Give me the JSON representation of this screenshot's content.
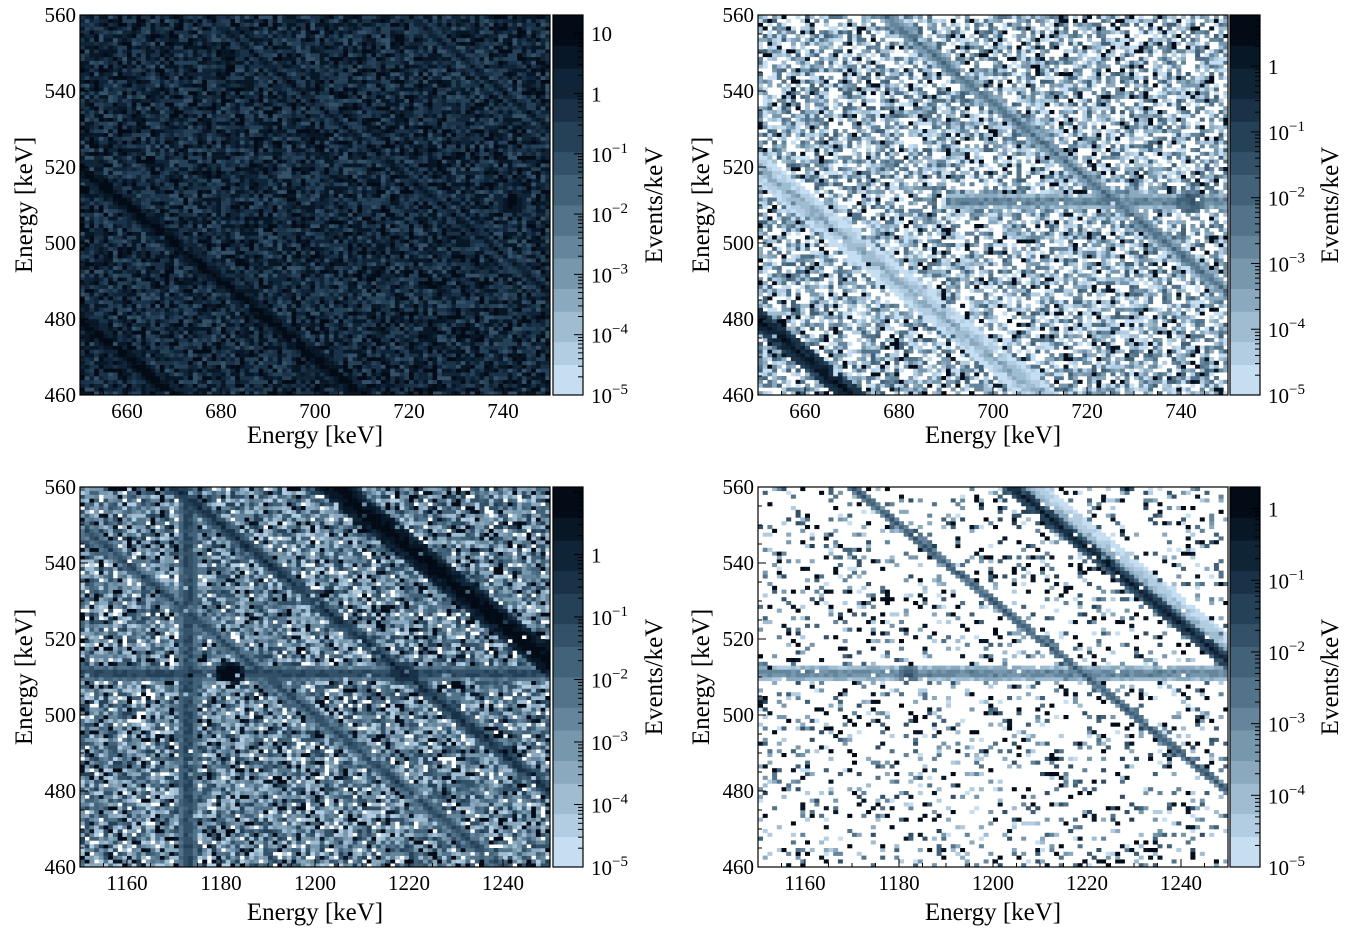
{
  "colormap": [
    "#c6def2",
    "#b2cde2",
    "#9fbcd1",
    "#8aa9bf",
    "#7797ad",
    "#64859b",
    "#53738a",
    "#426279",
    "#335168",
    "#254158",
    "#193248",
    "#0f2437",
    "#071726",
    "#020b16"
  ],
  "chart_data": [
    {
      "type": "heatmap",
      "panel": "top-left",
      "xlabel": "Energy [keV]",
      "ylabel": "Energy [keV]",
      "xlim": [
        650,
        750
      ],
      "ylim": [
        460,
        560
      ],
      "xticks": [
        660,
        680,
        700,
        720,
        740
      ],
      "yticks": [
        460,
        480,
        500,
        520,
        540,
        560
      ],
      "bins": [
        100,
        100
      ],
      "colorbar": {
        "label": "Events/keV",
        "scale": "log",
        "range": [
          1e-05,
          20
        ],
        "ticks": [
          {
            "value": 1e-05,
            "base": "10",
            "exp": "−5"
          },
          {
            "value": 0.0001,
            "base": "10",
            "exp": "−4"
          },
          {
            "value": 0.001,
            "base": "10",
            "exp": "−3"
          },
          {
            "value": 0.01,
            "base": "10",
            "exp": "−2"
          },
          {
            "value": 0.1,
            "base": "10",
            "exp": "−1"
          },
          {
            "value": 1,
            "base": "1",
            "exp": ""
          },
          {
            "value": 10,
            "base": "10",
            "exp": ""
          }
        ]
      },
      "background": {
        "min": -1.2,
        "max": 1.0,
        "empty": 0.0,
        "hot": 0.12
      },
      "features": [
        {
          "kind": "diag",
          "sum": 1170,
          "width": 1.6,
          "level": 1.3,
          "note": "x + y = 1170"
        },
        {
          "kind": "diag",
          "sum": 1130,
          "width": 1.6,
          "level": 1.3,
          "note": "x + y = 1130"
        },
        {
          "kind": "diag",
          "sum": 1237,
          "width": 1.0,
          "level": 0.7,
          "note": "x + y = 1237"
        },
        {
          "kind": "diag",
          "sum": 1280,
          "width": 1.0,
          "level": 0.6,
          "note": "x + y = 1280"
        },
        {
          "kind": "blob",
          "x": 742,
          "y": 511,
          "radius": 2.0,
          "level": 1.5
        }
      ]
    },
    {
      "type": "heatmap",
      "panel": "top-right",
      "xlabel": "Energy [keV]",
      "ylabel": "Energy [keV]",
      "xlim": [
        650,
        750
      ],
      "ylim": [
        460,
        560
      ],
      "xticks": [
        660,
        680,
        700,
        720,
        740
      ],
      "yticks": [
        460,
        480,
        500,
        520,
        540,
        560
      ],
      "bins": [
        100,
        100
      ],
      "colorbar": {
        "label": "Events/keV",
        "scale": "log",
        "range": [
          1e-05,
          6
        ],
        "ticks": [
          {
            "value": 1e-05,
            "base": "10",
            "exp": "−5"
          },
          {
            "value": 0.0001,
            "base": "10",
            "exp": "−4"
          },
          {
            "value": 0.001,
            "base": "10",
            "exp": "−3"
          },
          {
            "value": 0.01,
            "base": "10",
            "exp": "−2"
          },
          {
            "value": 0.1,
            "base": "10",
            "exp": "−1"
          },
          {
            "value": 1,
            "base": "1",
            "exp": ""
          }
        ]
      },
      "background": {
        "min": -5.2,
        "max": -1.8,
        "empty": 0.33,
        "hot": 0.07
      },
      "features": [
        {
          "kind": "diag",
          "sum": 1170,
          "width": 1.8,
          "level": -3.6
        },
        {
          "kind": "diag",
          "sum": 1130,
          "width": 1.6,
          "level": 0.2
        },
        {
          "kind": "diag",
          "sum": 1237,
          "width": 1.0,
          "level": -2.2
        },
        {
          "kind": "hband",
          "y": 511,
          "width": 1.0,
          "level": -2.3,
          "xmin": 690,
          "xmax": 750
        },
        {
          "kind": "blob",
          "x": 742,
          "y": 511,
          "radius": 2.0,
          "level": -1.2
        }
      ]
    },
    {
      "type": "heatmap",
      "panel": "bottom-left",
      "xlabel": "Energy [keV]",
      "ylabel": "Energy [keV]",
      "xlim": [
        1150,
        1250
      ],
      "ylim": [
        460,
        560
      ],
      "xticks": [
        1160,
        1180,
        1200,
        1220,
        1240
      ],
      "yticks": [
        460,
        480,
        500,
        520,
        540,
        560
      ],
      "bins": [
        100,
        100
      ],
      "colorbar": {
        "label": "Events/keV",
        "scale": "log",
        "range": [
          1e-05,
          12
        ],
        "ticks": [
          {
            "value": 1e-05,
            "base": "10",
            "exp": "−5"
          },
          {
            "value": 0.0001,
            "base": "10",
            "exp": "−4"
          },
          {
            "value": 0.001,
            "base": "10",
            "exp": "−3"
          },
          {
            "value": 0.01,
            "base": "10",
            "exp": "−2"
          },
          {
            "value": 0.1,
            "base": "10",
            "exp": "−1"
          },
          {
            "value": 1,
            "base": "1",
            "exp": ""
          }
        ]
      },
      "background": {
        "min": -4.4,
        "max": -0.8,
        "empty": 0.08,
        "hot": 0.12
      },
      "features": [
        {
          "kind": "diag",
          "sum": 1764,
          "width": 2.0,
          "level": 1.2
        },
        {
          "kind": "diag",
          "sum": 1730,
          "width": 1.2,
          "level": -0.4
        },
        {
          "kind": "diag",
          "sum": 1700,
          "width": 1.0,
          "level": -1.0
        },
        {
          "kind": "vband",
          "x": 1173,
          "width": 1.2,
          "level": -0.8
        },
        {
          "kind": "hband",
          "y": 511,
          "width": 1.0,
          "level": -0.7
        },
        {
          "kind": "blob",
          "x": 1182,
          "y": 511,
          "radius": 2.2,
          "level": 1.4
        },
        {
          "kind": "blob",
          "x": 1219,
          "y": 511,
          "radius": 1.6,
          "level": 0.6
        }
      ]
    },
    {
      "type": "heatmap",
      "panel": "bottom-right",
      "xlabel": "Energy [keV]",
      "ylabel": "Energy [keV]",
      "xlim": [
        1150,
        1250
      ],
      "ylim": [
        460,
        560
      ],
      "xticks": [
        1160,
        1180,
        1200,
        1220,
        1240
      ],
      "yticks": [
        460,
        480,
        500,
        520,
        540,
        560
      ],
      "bins": [
        100,
        100
      ],
      "colorbar": {
        "label": "Events/keV",
        "scale": "log",
        "range": [
          1e-05,
          2
        ],
        "ticks": [
          {
            "value": 1e-05,
            "base": "10",
            "exp": "−5"
          },
          {
            "value": 0.0001,
            "base": "10",
            "exp": "−4"
          },
          {
            "value": 0.001,
            "base": "10",
            "exp": "−3"
          },
          {
            "value": 0.01,
            "base": "10",
            "exp": "−2"
          },
          {
            "value": 0.1,
            "base": "10",
            "exp": "−1"
          },
          {
            "value": 1,
            "base": "1",
            "exp": ""
          }
        ]
      },
      "background": {
        "min": -5.0,
        "max": -1.5,
        "empty": 0.8,
        "hot": 0.05
      },
      "features": [
        {
          "kind": "diag",
          "sum": 1764,
          "width": 1.0,
          "level": -0.6
        },
        {
          "kind": "diag",
          "sum": 1767,
          "width": 2.2,
          "level": -3.8
        },
        {
          "kind": "diag",
          "sum": 1730,
          "width": 0.8,
          "level": -2.0
        },
        {
          "kind": "hband",
          "y": 511,
          "width": 1.0,
          "level": -2.6
        },
        {
          "kind": "blob",
          "x": 1182,
          "y": 511,
          "radius": 1.4,
          "level": -1.6
        }
      ]
    }
  ]
}
